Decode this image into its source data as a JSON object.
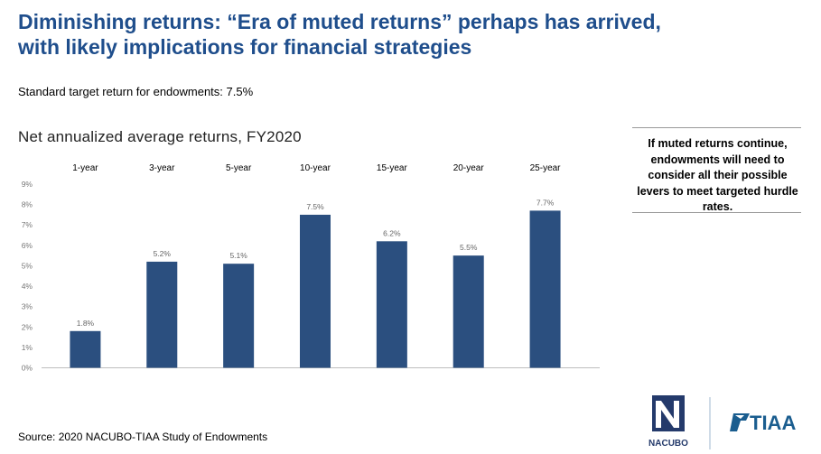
{
  "header": {
    "title_line1": "Diminishing returns: “Era of muted returns” perhaps has arrived,",
    "title_line2": "with likely implications for financial strategies",
    "subtitle": "Standard target return for endowments: 7.5%"
  },
  "chart_data": {
    "type": "bar",
    "title": "Net annualized average returns, FY2020",
    "categories": [
      "1-year",
      "3-year",
      "5-year",
      "10-year",
      "15-year",
      "20-year",
      "25-year"
    ],
    "values": [
      1.8,
      5.2,
      5.1,
      7.5,
      6.2,
      5.5,
      7.7
    ],
    "data_labels": [
      "1.8%",
      "5.2%",
      "5.1%",
      "7.5%",
      "6.2%",
      "5.5%",
      "7.7%"
    ],
    "y_ticks": [
      "0%",
      "1%",
      "2%",
      "3%",
      "4%",
      "5%",
      "6%",
      "7%",
      "8%",
      "9%"
    ],
    "ylim": [
      0,
      9
    ],
    "category_labels_position": "top",
    "grid": false,
    "bar_color": "#2b4f7f"
  },
  "callout": {
    "text": "If muted returns continue, endowments will need to consider all their possible levers to meet targeted hurdle rates."
  },
  "footer": {
    "source": "Source: 2020 NACUBO-TIAA Study of Endowments",
    "logo_left": "NACUBO",
    "logo_right": "TIAA"
  },
  "colors": {
    "title": "#1f4e8c",
    "bar": "#2b4f7f",
    "tiaa_logo": "#1a5d8f"
  }
}
